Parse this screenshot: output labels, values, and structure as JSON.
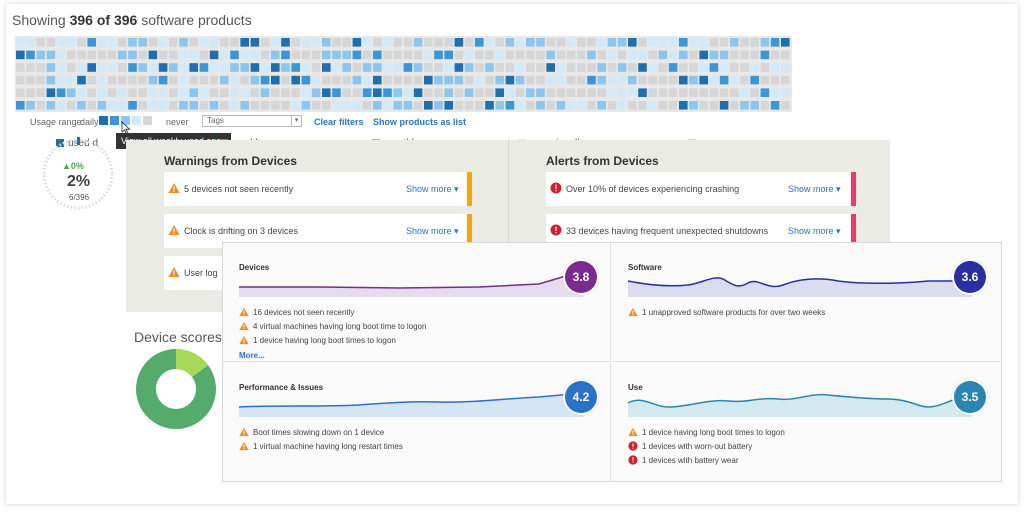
{
  "usage": {
    "title_prefix": "Showing ",
    "shown": "396 of 396",
    "title_suffix": " software products",
    "range_label": "Usage range:",
    "range_daily": "daily",
    "range_never": "never",
    "tags_placeholder": "Tags",
    "clear_filters": "Clear filters",
    "show_as_list": "Show products as list",
    "tooltip": "View all weekly used apps",
    "legend": [
      {
        "label": "used d",
        "color": "#1f6fae"
      },
      {
        "label": "weekly",
        "color": "#3a96d6"
      },
      {
        "label": "monthly",
        "color": "#8cc6ee"
      },
      {
        "label": "occasionally",
        "color": "#d2e9f7"
      },
      {
        "label": "never",
        "color": "#d6d6d6"
      }
    ],
    "gauge_change": "0%",
    "gauge_value": "2%",
    "gauge_sub": "6/396",
    "colors": {
      "daily": "#1f6fae",
      "weekly": "#3a96d6",
      "monthly": "#8cc6ee",
      "occasional": "#d2e9f7",
      "never": "#d6d6d6"
    }
  },
  "warnings": {
    "title": "Warnings from Devices",
    "items": [
      {
        "text": "5 devices not seen recently",
        "more": "Show more ▾"
      },
      {
        "text": "Clock is drifting on 3 devices",
        "more": "Show more ▾"
      },
      {
        "text": "User log",
        "more": ""
      }
    ]
  },
  "alerts": {
    "title": "Alerts from Devices",
    "items": [
      {
        "text": "Over 10% of devices experiencing crashing",
        "more": "Show more ▾"
      },
      {
        "text": "33 devices having frequent unexpected shutdowns",
        "more": "Show more ▾"
      }
    ]
  },
  "device_scores": {
    "title": "Device scores",
    "segments": [
      {
        "value": 0.85,
        "color": "#55ab6b"
      },
      {
        "value": 0.15,
        "color": "#a8d85a"
      }
    ]
  },
  "cards": {
    "devices": {
      "title": "Devices",
      "score": "3.8",
      "color": "#7b2a8e",
      "issues": [
        {
          "text": "16 devices not seen recently",
          "level": "warning"
        },
        {
          "text": "4 virtual machines having long boot time to logon",
          "level": "warning"
        },
        {
          "text": "1 device having long boot times to logon",
          "level": "warning"
        }
      ],
      "more": "More..."
    },
    "software": {
      "title": "Software",
      "score": "3.6",
      "color": "#2a2fa0",
      "issues": [
        {
          "text": "1 unapproved software products for over two weeks",
          "level": "warning"
        }
      ]
    },
    "performance": {
      "title": "Performance & Issues",
      "score": "4.2",
      "color": "#2a72c8",
      "issues": [
        {
          "text": "Boot times slowing down on 1 device",
          "level": "warning"
        },
        {
          "text": "1 virtual machine having long restart times",
          "level": "warning"
        }
      ]
    },
    "use": {
      "title": "Use",
      "score": "3.5",
      "color": "#2a86b0",
      "issues": [
        {
          "text": "1 device having long boot times to logon",
          "level": "warning"
        },
        {
          "text": "1 devices with worn-out battery",
          "level": "error"
        },
        {
          "text": "1 devices with battery wear",
          "level": "error"
        }
      ]
    }
  }
}
